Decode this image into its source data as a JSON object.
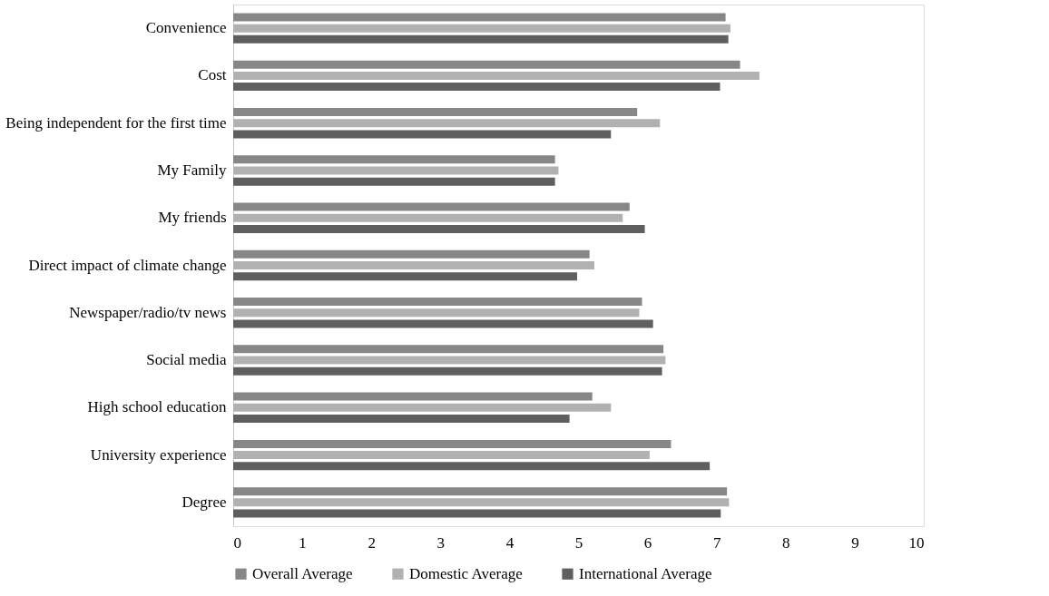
{
  "chart_data": {
    "type": "bar",
    "orientation": "horizontal",
    "categories": [
      "Convenience",
      "Cost",
      "Being independent for the first time",
      "My Family",
      "My friends",
      "Direct impact of climate change ",
      "Newspaper/radio/tv news",
      "Social media",
      "High school education",
      "University experience",
      "Degree"
    ],
    "series": [
      {
        "name": "Overall Average",
        "color": "#878787",
        "values": [
          7.13,
          7.34,
          5.85,
          4.66,
          5.74,
          5.16,
          5.92,
          6.23,
          5.2,
          6.34,
          7.15
        ]
      },
      {
        "name": "Domestic Average",
        "color": "#b1b1b1",
        "values": [
          7.2,
          7.62,
          6.18,
          4.71,
          5.64,
          5.23,
          5.88,
          6.26,
          5.47,
          6.03,
          7.18
        ]
      },
      {
        "name": "International Average",
        "color": "#5f5f5f",
        "values": [
          7.17,
          7.05,
          5.47,
          4.66,
          5.96,
          4.98,
          6.08,
          6.21,
          4.87,
          6.9,
          7.06
        ]
      }
    ],
    "xlim": [
      0,
      10
    ],
    "xticks": [
      0,
      1,
      2,
      3,
      4,
      5,
      6,
      7,
      8,
      9,
      10
    ],
    "grid": false,
    "legend": "bottom"
  }
}
